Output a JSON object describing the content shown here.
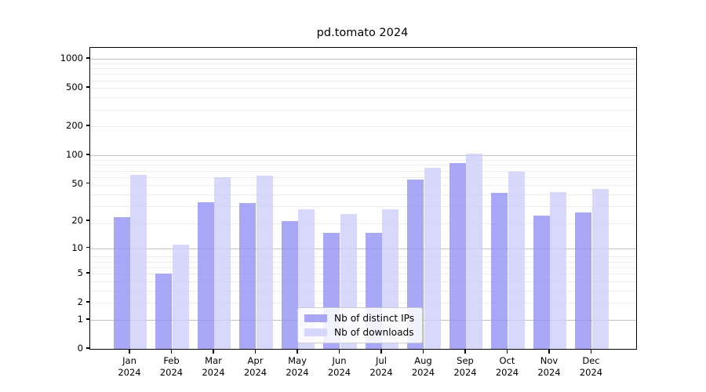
{
  "title": "pd.tomato 2024",
  "chart_data": {
    "type": "bar",
    "categories": [
      "Jan",
      "Feb",
      "Mar",
      "Apr",
      "May",
      "Jun",
      "Jul",
      "Aug",
      "Sep",
      "Oct",
      "Nov",
      "Dec"
    ],
    "category_year": "2024",
    "categories_full": [
      "Jan 2024",
      "Feb 2024",
      "Mar 2024",
      "Apr 2024",
      "May 2024",
      "Jun 2024",
      "Jul 2024",
      "Aug 2024",
      "Sep 2024",
      "Oct 2024",
      "Nov 2024",
      "Dec 2024"
    ],
    "series": [
      {
        "name": "Nb of distinct IPs",
        "color": "#9292f4",
        "values": [
          22,
          5,
          32,
          31,
          20,
          15,
          15,
          56,
          82,
          40,
          23,
          25
        ]
      },
      {
        "name": "Nb of downloads",
        "color": "#cecefa",
        "values": [
          62,
          11,
          59,
          61,
          27,
          24,
          27,
          74,
          103,
          67,
          41,
          44
        ]
      }
    ],
    "yscale": "log10(1+x)",
    "yticks": [
      0,
      1,
      2,
      5,
      10,
      20,
      50,
      100,
      200,
      500,
      1000
    ],
    "ytick_labels": [
      "0",
      "1",
      "2",
      "5",
      "10",
      "20",
      "50",
      "100",
      "200",
      "500",
      "1000"
    ],
    "ylim": [
      0,
      1300
    ],
    "grid": true,
    "grid_major_at": [
      1,
      10,
      100,
      1000
    ],
    "legend_position": "lower center",
    "xlabel": "",
    "ylabel": ""
  },
  "colors": {
    "major_grid": "#c2c2c2",
    "minor_grid": "#ececec",
    "spine": "#000000",
    "background": "#ffffff"
  }
}
